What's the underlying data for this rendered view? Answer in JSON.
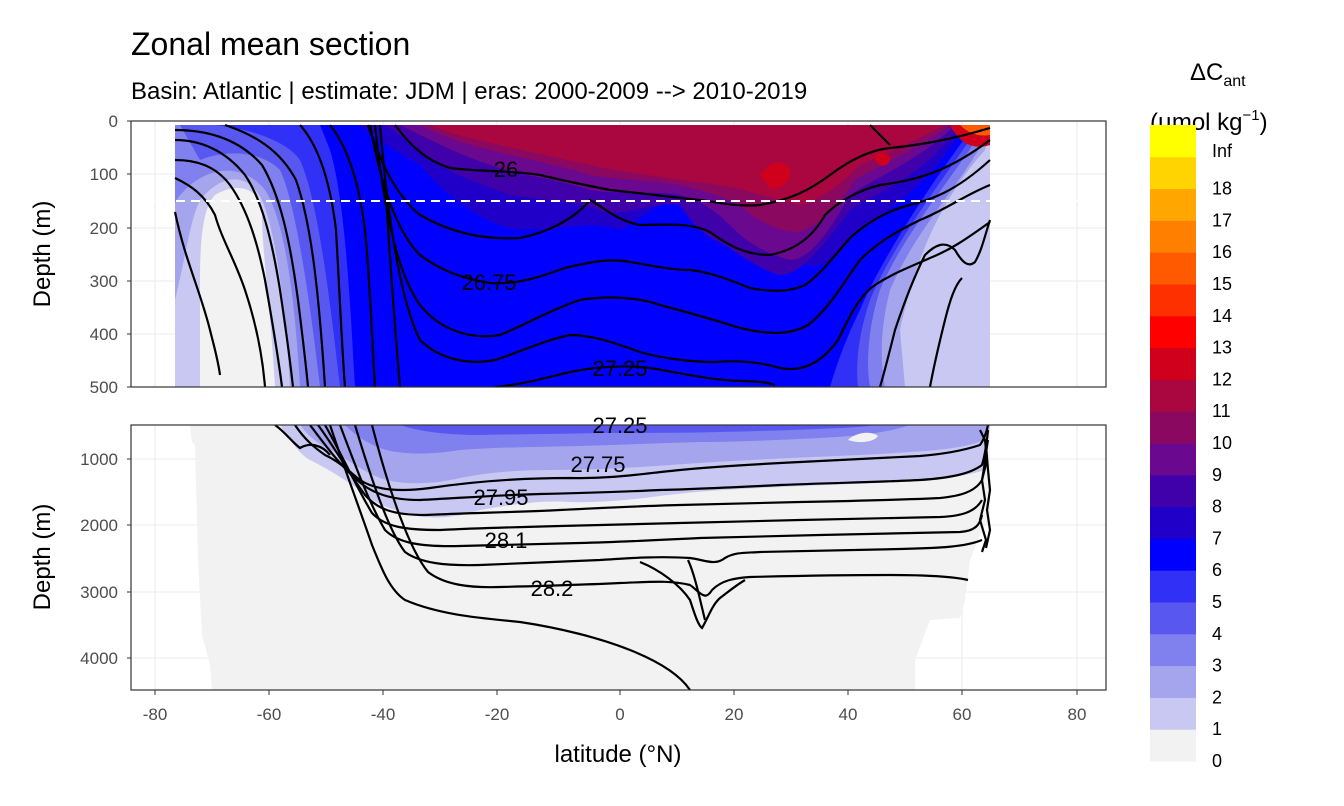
{
  "chart_data": {
    "type": "contour",
    "title": "Zonal mean section",
    "subtitle": "Basin: Atlantic | estimate: JDM  | eras: 2000-2009 --> 2010-2019",
    "xlabel": "latitude (°N)",
    "x_ticks": [
      "-80",
      "-60",
      "-40",
      "-20",
      "0",
      "20",
      "40",
      "60",
      "80"
    ],
    "xlim": [
      -85,
      85
    ],
    "panels": [
      {
        "name": "upper",
        "ylabel": "Depth (m)",
        "ylim": [
          500,
          0
        ],
        "y_ticks": [
          "0",
          "100",
          "200",
          "300",
          "400",
          "500"
        ],
        "reference_line_depth": 150,
        "isopycnal_labels": [
          {
            "text": "26",
            "lat": -20,
            "depth": 90
          },
          {
            "text": "26.75",
            "lat": -23,
            "depth": 300
          },
          {
            "text": "27.25",
            "lat": 0,
            "depth": 460
          }
        ]
      },
      {
        "name": "lower",
        "ylabel": "Depth (m)",
        "ylim": [
          4500,
          500
        ],
        "y_ticks": [
          "1000",
          "2000",
          "3000",
          "4000"
        ],
        "isopycnal_labels": [
          {
            "text": "27.25",
            "lat": 0,
            "depth": 500
          },
          {
            "text": "27.75",
            "lat": -4,
            "depth": 1100
          },
          {
            "text": "27.95",
            "lat": -20,
            "depth": 1560
          },
          {
            "text": "28.1",
            "lat": -20,
            "depth": 2230
          },
          {
            "text": "28.2",
            "lat": -12,
            "depth": 2950
          }
        ]
      }
    ],
    "legend": {
      "title_line1": "ΔC",
      "title_sub": "ant",
      "title_line2": "(µmol kg",
      "title_sup": "−1",
      "title_close": ")",
      "levels": [
        "0",
        "1",
        "2",
        "3",
        "4",
        "5",
        "6",
        "7",
        "8",
        "9",
        "10",
        "11",
        "12",
        "13",
        "14",
        "15",
        "16",
        "17",
        "18",
        "Inf"
      ],
      "colors": [
        "#f2f2f2",
        "#c8c8f2",
        "#a5a5ee",
        "#8080ee",
        "#5858f0",
        "#3030f6",
        "#0000ff",
        "#2000c8",
        "#4000aa",
        "#6a0890",
        "#8a0860",
        "#aa0640",
        "#d0001c",
        "#ff0000",
        "#ff3000",
        "#ff5a00",
        "#ff8000",
        "#ffa600",
        "#ffd400",
        "#ffff00"
      ]
    }
  }
}
